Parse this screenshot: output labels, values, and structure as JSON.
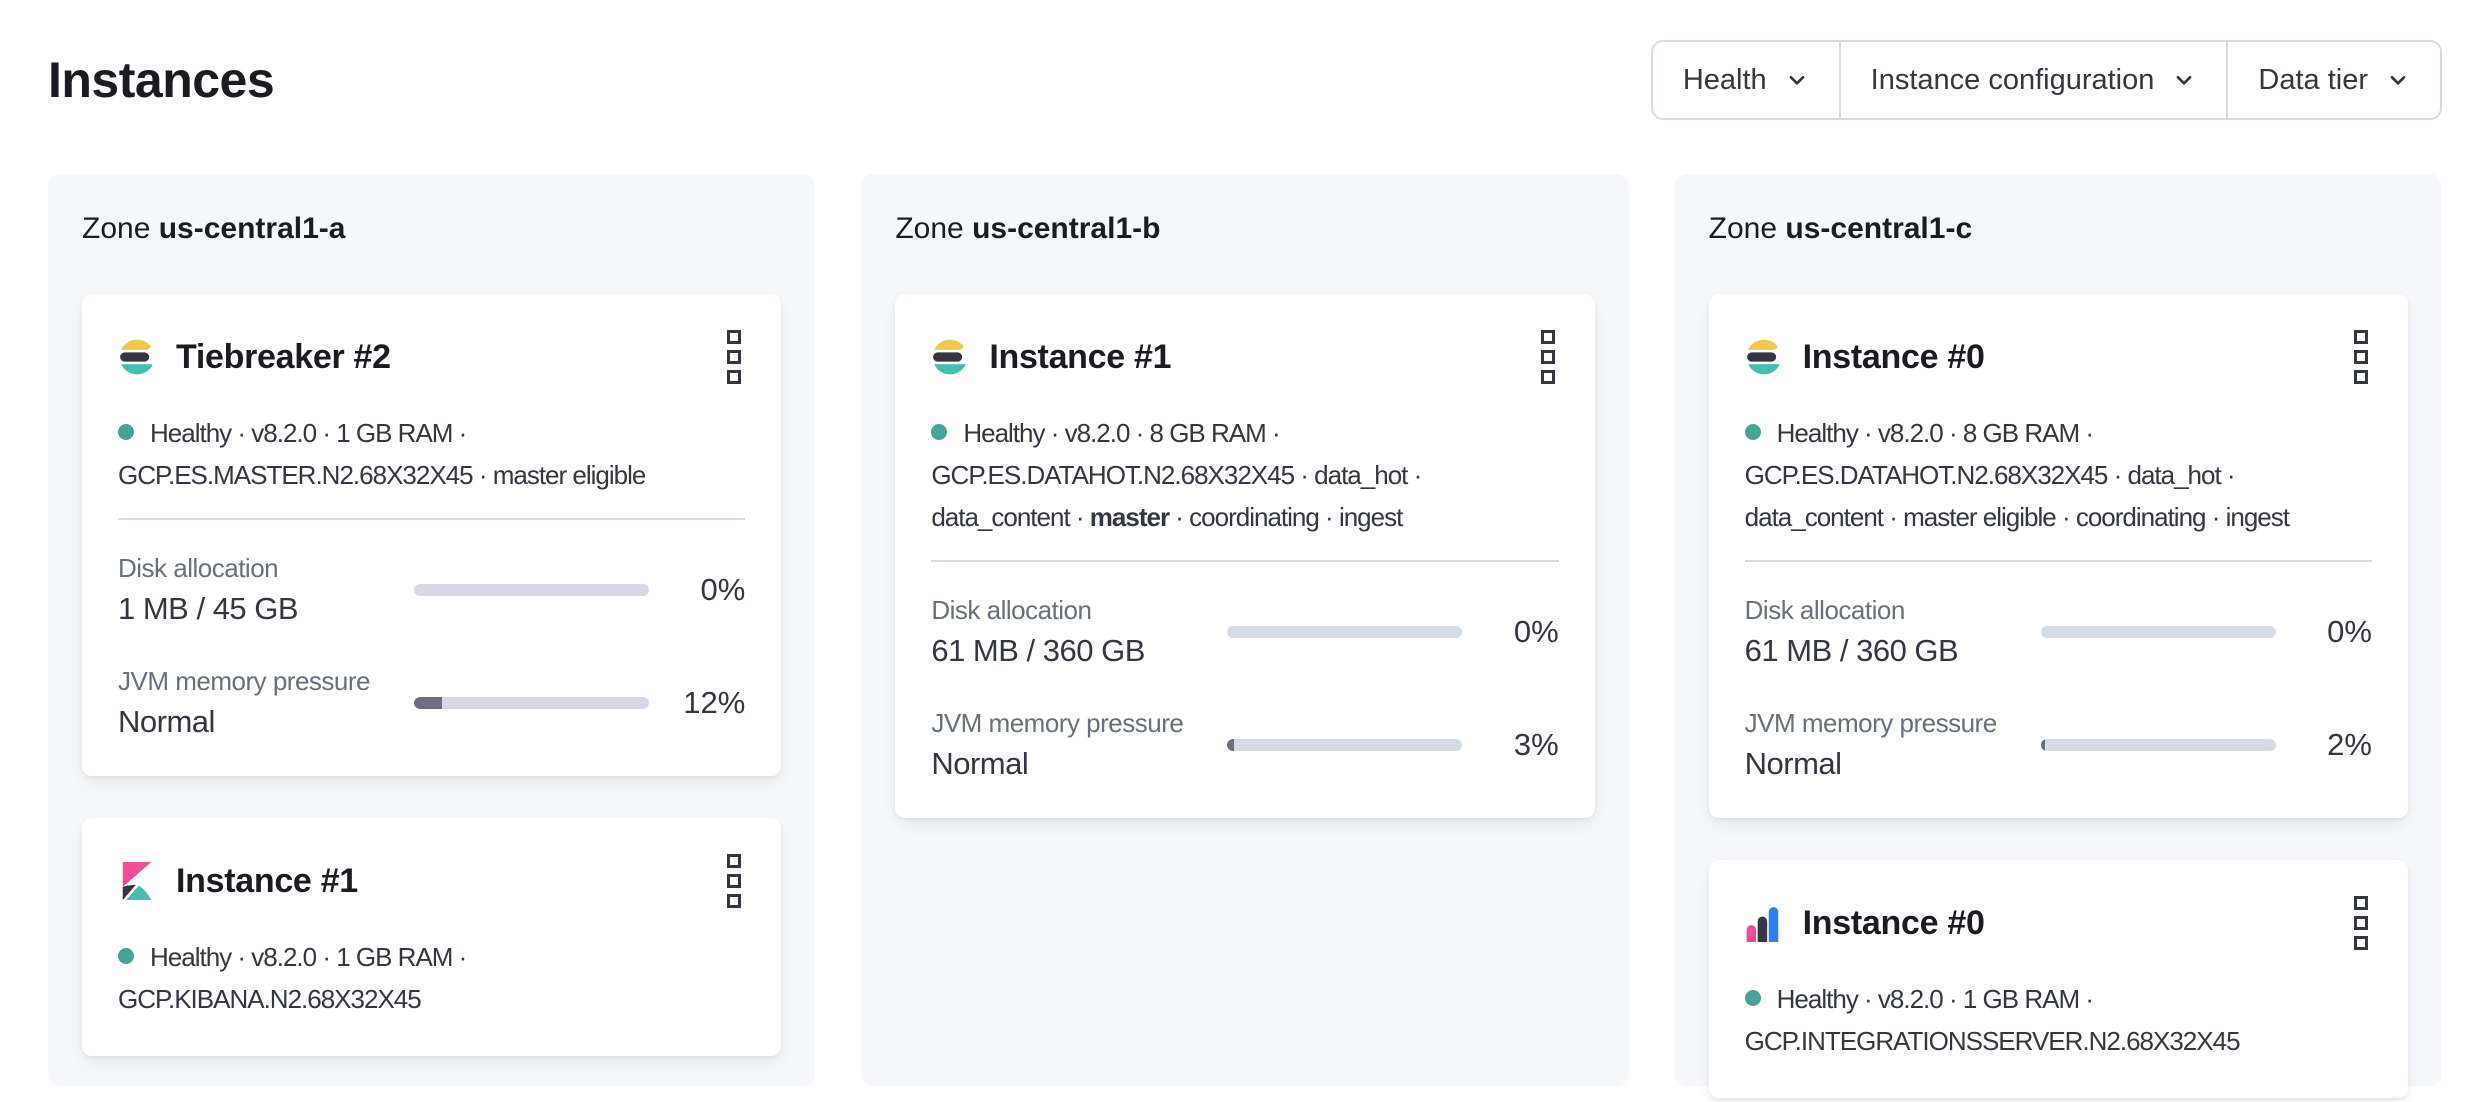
{
  "page": {
    "title": "Instances"
  },
  "filters": [
    {
      "label": "Health"
    },
    {
      "label": "Instance configuration"
    },
    {
      "label": "Data tier"
    }
  ],
  "zones": [
    {
      "prefix": "Zone",
      "name": "us-central1-a",
      "cards": [
        {
          "logo_icon": "elasticsearch-logo",
          "title": "Tiebreaker #2",
          "health": "Healthy",
          "meta": [
            {
              "text": "Healthy · v8.2.0 · 1 GB RAM · GCP.ES.MASTER.N2.68X32X45 · master eligible",
              "bold": false
            }
          ],
          "metrics": [
            {
              "label": "Disk allocation",
              "value": "1 MB / 45 GB",
              "percent": 0,
              "percent_label": "0%"
            },
            {
              "label": "JVM memory pressure",
              "value": "Normal",
              "percent": 12,
              "percent_label": "12%"
            }
          ]
        },
        {
          "logo_icon": "kibana-logo",
          "title": "Instance #1",
          "health": "Healthy",
          "meta": [
            {
              "text": "Healthy · v8.2.0 · 1 GB RAM · GCP.KIBANA.N2.68X32X45",
              "bold": false
            }
          ]
        }
      ]
    },
    {
      "prefix": "Zone",
      "name": "us-central1-b",
      "cards": [
        {
          "logo_icon": "elasticsearch-logo",
          "title": "Instance #1",
          "health": "Healthy",
          "meta": [
            {
              "text": "Healthy · v8.2.0 · 8 GB RAM · GCP.ES.DATAHOT.N2.68X32X45 · data_hot · data_content · ",
              "bold": false
            },
            {
              "text": "master",
              "bold": true
            },
            {
              "text": " · coordinating · ingest",
              "bold": false
            }
          ],
          "metrics": [
            {
              "label": "Disk allocation",
              "value": "61 MB / 360 GB",
              "percent": 0,
              "percent_label": "0%"
            },
            {
              "label": "JVM memory pressure",
              "value": "Normal",
              "percent": 3,
              "percent_label": "3%"
            }
          ]
        }
      ]
    },
    {
      "prefix": "Zone",
      "name": "us-central1-c",
      "cards": [
        {
          "logo_icon": "elasticsearch-logo",
          "title": "Instance #0",
          "health": "Healthy",
          "meta": [
            {
              "text": "Healthy · v8.2.0 · 8 GB RAM · GCP.ES.DATAHOT.N2.68X32X45 · data_hot · data_content · master eligible · coordinating · ingest",
              "bold": false
            }
          ],
          "metrics": [
            {
              "label": "Disk allocation",
              "value": "61 MB / 360 GB",
              "percent": 0,
              "percent_label": "0%"
            },
            {
              "label": "JVM memory pressure",
              "value": "Normal",
              "percent": 2,
              "percent_label": "2%"
            }
          ]
        },
        {
          "logo_icon": "integrations-server-logo",
          "title": "Instance #0",
          "health": "Healthy",
          "meta": [
            {
              "text": "Healthy · v8.2.0 · 1 GB RAM · GCP.INTEGRATIONSSERVER.N2.68X32X45",
              "bold": false
            }
          ]
        }
      ]
    }
  ],
  "colors": {
    "health_ok": "#45A497",
    "progress_track": "#D3DAE6",
    "progress_fill": "#69707D",
    "border": "#D3DAE6",
    "zone_background": "#F5F7FA",
    "text_primary": "#1A1C21",
    "text_body": "#343741",
    "text_subdued": "#69707D",
    "logo_yellow": "#F2C84C",
    "logo_teal": "#45BDB0",
    "logo_pink": "#F04E98",
    "logo_dark": "#343741",
    "logo_blue": "#2E7EED"
  }
}
